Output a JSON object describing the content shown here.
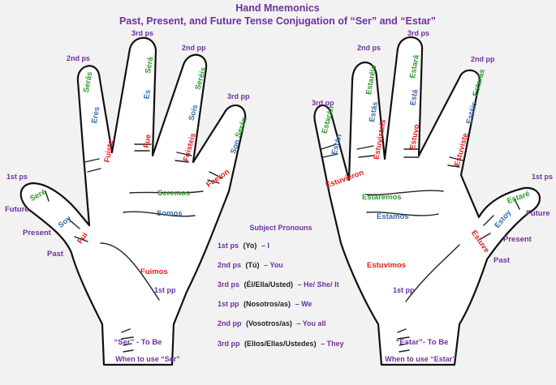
{
  "title": "Hand Mnemonics",
  "subtitle": "Past, Present, and Future Tense Conjugation of “Ser” and “Estar”",
  "colors": {
    "future": "#2e9a2e",
    "present": "#3a6ea8",
    "past": "#e02020",
    "label": "#7030a0",
    "text": "#222222"
  },
  "ser_hand": {
    "caption": "“Ser” - To Be",
    "usage": "When to use “Ser”",
    "labels": {
      "thumb": "1st ps",
      "index": "2nd ps",
      "middle": "3rd ps",
      "ring": "2nd pp",
      "pinky": "3rd pp",
      "palm": "1st pp"
    },
    "tense_legend": {
      "future": "Future",
      "present": "Present",
      "past": "Past"
    },
    "future": {
      "yo": "Seré",
      "tu": "Serás",
      "el": "Será",
      "vos": "Seréis",
      "ellos": "Serán",
      "nos": "Seremos"
    },
    "present": {
      "yo": "Soy",
      "tu": "Eres",
      "el": "Es",
      "vos": "Sois",
      "ellos": "Son",
      "nos": "Somos"
    },
    "past": {
      "yo": "Fui",
      "tu": "Fuiste",
      "el": "Fue",
      "vos": "Fuisteis",
      "ellos": "Fueron",
      "nos": "Fuimos"
    }
  },
  "estar_hand": {
    "caption": "“Estar”- To Be",
    "usage": "When to use “Estar”",
    "labels": {
      "thumb": "1st ps",
      "index": "2nd ps",
      "middle": "3rd ps",
      "ring": "2nd pp",
      "pinky": "3rd pp",
      "palm": "1st pp"
    },
    "tense_legend": {
      "future": "Future",
      "present": "Present",
      "past": "Past"
    },
    "future": {
      "yo": "Estaré",
      "tu": "Estarás",
      "el": "Estará",
      "vos": "Estaréis",
      "ellos": "Estarán",
      "nos": "Estaremos"
    },
    "present": {
      "yo": "Estoy",
      "tu": "Estás",
      "el": "Está",
      "vos": "Estáis",
      "ellos": "Están",
      "nos": "Estamos"
    },
    "past": {
      "yo": "Estuve",
      "tu": "Estuviste",
      "el": "Estuvo",
      "vos": "Estuvisteis",
      "ellos": "Estuvieron",
      "nos": "Estuvimos"
    }
  },
  "pronouns": {
    "heading": "Subject Pronouns",
    "rows": [
      {
        "person": "1st ps",
        "pronoun": "(Yo)",
        "meaning": "– I"
      },
      {
        "person": "2nd ps",
        "pronoun": "(Tú)",
        "meaning": "– You"
      },
      {
        "person": "3rd ps",
        "pronoun": "(Él/Ella/Usted)",
        "meaning": "– He/ She/ It"
      },
      {
        "person": "1st pp",
        "pronoun": "(Nosotros/as)",
        "meaning": "– We"
      },
      {
        "person": "2nd pp",
        "pronoun": "(Vosotros/as)",
        "meaning": "– You all"
      },
      {
        "person": "3rd pp",
        "pronoun": "(Ellos/Ellas/Ustedes)",
        "meaning": "– They"
      }
    ]
  }
}
